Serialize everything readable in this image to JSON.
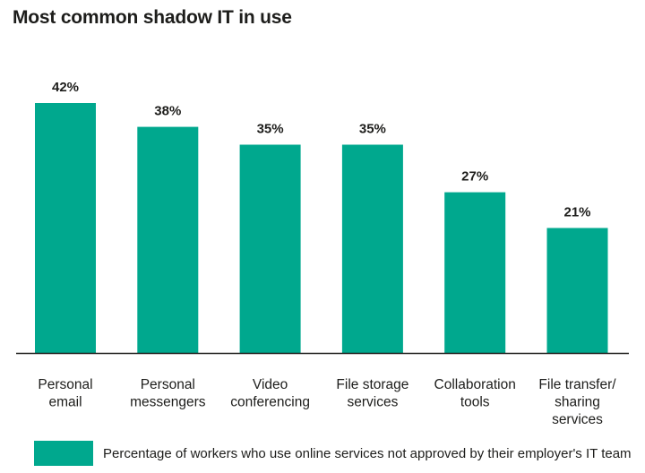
{
  "chart_data": {
    "type": "bar",
    "title": "Most common shadow IT in use",
    "categories": [
      [
        "Personal",
        "email"
      ],
      [
        "Personal",
        "messengers"
      ],
      [
        "Video",
        "conferencing"
      ],
      [
        "File storage",
        "services"
      ],
      [
        "Collaboration",
        "tools"
      ],
      [
        "File transfer/",
        "sharing",
        "services"
      ]
    ],
    "series": [
      {
        "name": "Percentage of workers who use online services not approved by their employer's IT team",
        "values": [
          42,
          38,
          35,
          35,
          27,
          21
        ],
        "labels": [
          "42%",
          "38%",
          "35%",
          "35%",
          "27%",
          "21%"
        ]
      }
    ],
    "ylim": [
      0,
      42
    ],
    "bar_color": "#00a88e",
    "axis_color": "#1d1d1b",
    "grid": false,
    "legend_position": "bottom"
  }
}
